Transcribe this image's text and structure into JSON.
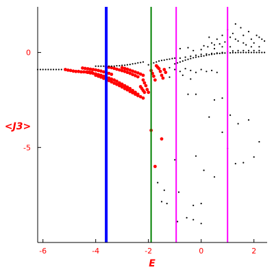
{
  "chart_data": {
    "type": "scatter",
    "title": "",
    "xlabel": "E",
    "ylabel": "<J3>",
    "xlim": [
      -6.2,
      2.5
    ],
    "ylim": [
      -10,
      2.4
    ],
    "grid": false,
    "label_color": "#ff0000",
    "axis_color": "#000000",
    "x_ticks": [
      {
        "value": -6,
        "label": "-6"
      },
      {
        "value": -4,
        "label": "-4"
      },
      {
        "value": -2,
        "label": "-2"
      },
      {
        "value": 0,
        "label": "0"
      },
      {
        "value": 2,
        "label": "2"
      }
    ],
    "y_ticks": [
      {
        "value": 0,
        "label": "0"
      },
      {
        "value": -5,
        "label": "-5"
      }
    ],
    "vertical_lines": [
      {
        "x": -3.6,
        "color": "#0000ff"
      },
      {
        "x": -1.9,
        "color": "#008000"
      },
      {
        "x": -0.95,
        "color": "#ff00ff"
      },
      {
        "x": 1.0,
        "color": "#ff00ff"
      }
    ],
    "series": [
      {
        "color": "#ff0000",
        "points": [
          [
            -5.15,
            -0.9
          ],
          [
            -5.05,
            -0.93
          ],
          [
            -4.95,
            -0.95
          ],
          [
            -4.85,
            -0.98
          ],
          [
            -4.75,
            -1.0
          ],
          [
            -4.65,
            -1.0
          ],
          [
            -4.55,
            -1.02
          ],
          [
            -4.45,
            -1.02
          ],
          [
            -4.35,
            -1.03
          ],
          [
            -4.25,
            -1.04
          ],
          [
            -4.15,
            -1.05
          ],
          [
            -4.5,
            -0.82
          ],
          [
            -4.4,
            -0.84
          ],
          [
            -4.3,
            -0.86
          ],
          [
            -4.2,
            -0.88
          ],
          [
            -4.1,
            -0.9
          ],
          [
            -4.0,
            -0.92
          ],
          [
            -3.9,
            -0.95
          ],
          [
            -3.8,
            -0.98
          ],
          [
            -3.7,
            -1.02
          ],
          [
            -3.6,
            -1.05
          ],
          [
            -3.5,
            -1.1
          ],
          [
            -3.4,
            -1.15
          ],
          [
            -4.3,
            -1.05
          ],
          [
            -4.2,
            -1.08
          ],
          [
            -4.1,
            -1.1
          ],
          [
            -4.0,
            -1.13
          ],
          [
            -3.9,
            -1.17
          ],
          [
            -3.8,
            -1.2
          ],
          [
            -3.7,
            -1.25
          ],
          [
            -3.6,
            -1.3
          ],
          [
            -3.5,
            -1.35
          ],
          [
            -3.4,
            -1.4
          ],
          [
            -3.3,
            -1.45
          ],
          [
            -3.2,
            -1.52
          ],
          [
            -3.1,
            -1.6
          ],
          [
            -3.0,
            -1.67
          ],
          [
            -2.9,
            -1.75
          ],
          [
            -2.8,
            -1.82
          ],
          [
            -2.7,
            -1.9
          ],
          [
            -2.6,
            -2.0
          ],
          [
            -2.5,
            -2.1
          ],
          [
            -2.4,
            -2.2
          ],
          [
            -4.0,
            -1.2
          ],
          [
            -3.9,
            -1.25
          ],
          [
            -3.8,
            -1.3
          ],
          [
            -3.7,
            -1.36
          ],
          [
            -3.6,
            -1.42
          ],
          [
            -3.5,
            -1.48
          ],
          [
            -3.4,
            -1.55
          ],
          [
            -3.3,
            -1.62
          ],
          [
            -3.2,
            -1.68
          ],
          [
            -3.1,
            -1.75
          ],
          [
            -3.0,
            -1.82
          ],
          [
            -2.9,
            -1.9
          ],
          [
            -2.8,
            -1.97
          ],
          [
            -2.7,
            -2.05
          ],
          [
            -2.6,
            -2.12
          ],
          [
            -2.5,
            -2.2
          ],
          [
            -2.4,
            -2.27
          ],
          [
            -2.3,
            -2.33
          ],
          [
            -2.2,
            -2.4
          ],
          [
            -3.6,
            -0.75
          ],
          [
            -3.5,
            -0.78
          ],
          [
            -3.4,
            -0.8
          ],
          [
            -3.3,
            -0.84
          ],
          [
            -3.2,
            -0.88
          ],
          [
            -3.1,
            -0.92
          ],
          [
            -3.0,
            -0.96
          ],
          [
            -2.9,
            -1.0
          ],
          [
            -2.8,
            -1.05
          ],
          [
            -2.7,
            -1.1
          ],
          [
            -2.6,
            -1.16
          ],
          [
            -2.5,
            -1.22
          ],
          [
            -2.4,
            -1.28
          ],
          [
            -3.0,
            -0.8
          ],
          [
            -2.9,
            -0.84
          ],
          [
            -2.8,
            -0.88
          ],
          [
            -2.7,
            -0.93
          ],
          [
            -2.6,
            -0.98
          ],
          [
            -2.5,
            -1.03
          ],
          [
            -2.4,
            -1.08
          ],
          [
            -2.3,
            -1.14
          ],
          [
            -2.2,
            -1.2
          ],
          [
            -2.2,
            -1.45
          ],
          [
            -2.15,
            -1.6
          ],
          [
            -2.1,
            -1.75
          ],
          [
            -2.05,
            -1.95
          ],
          [
            -2.0,
            -2.1
          ],
          [
            -2.3,
            -1.8
          ],
          [
            -2.25,
            -1.9
          ],
          [
            -2.2,
            -2.0
          ],
          [
            -2.15,
            -2.1
          ],
          [
            -1.9,
            -0.95
          ],
          [
            -1.85,
            -1.1
          ],
          [
            -1.8,
            -1.25
          ],
          [
            -1.75,
            -1.45
          ],
          [
            -1.6,
            -0.85
          ],
          [
            -1.55,
            -1.0
          ],
          [
            -1.5,
            -1.2
          ],
          [
            -1.45,
            -1.35
          ],
          [
            -1.7,
            -0.7
          ],
          [
            -1.65,
            -0.78
          ],
          [
            -1.4,
            -0.9
          ],
          [
            -1.35,
            -1.05
          ],
          [
            -1.9,
            -4.1
          ],
          [
            -1.75,
            -6.0
          ],
          [
            -1.5,
            -4.55
          ]
        ]
      },
      {
        "color": "#000000",
        "points": [
          [
            -6.2,
            -0.9
          ],
          [
            -6.1,
            -0.9
          ],
          [
            -6.0,
            -0.9
          ],
          [
            -5.9,
            -0.9
          ],
          [
            -5.8,
            -0.9
          ],
          [
            -5.7,
            -0.9
          ],
          [
            -5.6,
            -0.9
          ],
          [
            -5.5,
            -0.9
          ],
          [
            -5.4,
            -0.9
          ],
          [
            -5.3,
            -0.9
          ],
          [
            -4.0,
            -0.72
          ],
          [
            -3.9,
            -0.72
          ],
          [
            -3.8,
            -0.72
          ],
          [
            -3.7,
            -0.72
          ],
          [
            -3.6,
            -0.72
          ],
          [
            -3.5,
            -0.72
          ],
          [
            -3.4,
            -0.72
          ],
          [
            -3.3,
            -0.72
          ],
          [
            -3.2,
            -0.7
          ],
          [
            -3.1,
            -0.7
          ],
          [
            -3.0,
            -0.68
          ],
          [
            -2.9,
            -0.67
          ],
          [
            -2.8,
            -0.65
          ],
          [
            -2.7,
            -0.63
          ],
          [
            -2.6,
            -0.6
          ],
          [
            -2.5,
            -0.58
          ],
          [
            -2.4,
            -0.55
          ],
          [
            -2.3,
            -0.53
          ],
          [
            -2.2,
            -0.5
          ],
          [
            -2.0,
            -0.65
          ],
          [
            -1.9,
            -0.6
          ],
          [
            -1.8,
            -0.55
          ],
          [
            -1.7,
            -0.5
          ],
          [
            -1.6,
            -0.45
          ],
          [
            -1.5,
            -0.42
          ],
          [
            -1.4,
            -0.4
          ],
          [
            -1.3,
            -0.37
          ],
          [
            -1.2,
            -0.35
          ],
          [
            -1.1,
            -0.32
          ],
          [
            -1.0,
            -0.3
          ],
          [
            -1.0,
            -0.6
          ],
          [
            -0.9,
            -0.55
          ],
          [
            -0.8,
            -0.5
          ],
          [
            -0.7,
            -0.45
          ],
          [
            -0.6,
            -0.4
          ],
          [
            -0.5,
            -0.36
          ],
          [
            -0.4,
            -0.32
          ],
          [
            -0.3,
            -0.28
          ],
          [
            -0.2,
            -0.25
          ],
          [
            -0.1,
            -0.22
          ],
          [
            0.0,
            -0.2
          ],
          [
            0.1,
            -0.18
          ],
          [
            0.2,
            -0.15
          ],
          [
            0.3,
            -0.12
          ],
          [
            0.4,
            -0.1
          ],
          [
            0.5,
            -0.08
          ],
          [
            0.6,
            -0.06
          ],
          [
            0.7,
            -0.05
          ],
          [
            0.8,
            -0.04
          ],
          [
            0.9,
            -0.03
          ],
          [
            1.0,
            -0.02
          ],
          [
            1.1,
            -0.02
          ],
          [
            1.2,
            -0.01
          ],
          [
            1.3,
            -0.01
          ],
          [
            1.4,
            0.0
          ],
          [
            1.5,
            0.0
          ],
          [
            1.6,
            0.0
          ],
          [
            1.7,
            0.0
          ],
          [
            1.8,
            0.0
          ],
          [
            1.9,
            0.0
          ],
          [
            2.0,
            0.0
          ],
          [
            2.1,
            0.0
          ],
          [
            2.2,
            0.0
          ],
          [
            2.3,
            0.0
          ],
          [
            2.4,
            0.0
          ],
          [
            -0.8,
            -0.3
          ],
          [
            -0.6,
            -0.25
          ],
          [
            -0.4,
            -0.2
          ],
          [
            -0.2,
            -0.15
          ],
          [
            0.0,
            -0.1
          ],
          [
            0.2,
            -0.08
          ],
          [
            0.4,
            -0.05
          ],
          [
            0.6,
            -0.03
          ],
          [
            0.8,
            0.0
          ],
          [
            1.0,
            0.05
          ],
          [
            1.2,
            0.08
          ],
          [
            1.4,
            0.1
          ],
          [
            1.6,
            0.1
          ],
          [
            1.8,
            0.1
          ],
          [
            2.0,
            0.1
          ],
          [
            2.2,
            0.1
          ],
          [
            -0.8,
            0.2
          ],
          [
            -0.5,
            0.25
          ],
          [
            -0.3,
            0.1
          ],
          [
            0.0,
            0.15
          ],
          [
            0.1,
            0.35
          ],
          [
            0.25,
            0.3
          ],
          [
            0.4,
            0.5
          ],
          [
            0.5,
            0.2
          ],
          [
            0.6,
            0.7
          ],
          [
            0.7,
            0.45
          ],
          [
            0.8,
            0.9
          ],
          [
            0.9,
            0.55
          ],
          [
            1.0,
            1.2
          ],
          [
            1.1,
            0.8
          ],
          [
            1.2,
            1.0
          ],
          [
            1.3,
            1.5
          ],
          [
            1.4,
            0.6
          ],
          [
            1.5,
            1.3
          ],
          [
            1.6,
            0.9
          ],
          [
            1.7,
            0.4
          ],
          [
            1.8,
            1.1
          ],
          [
            1.9,
            0.7
          ],
          [
            2.0,
            0.5
          ],
          [
            2.1,
            0.9
          ],
          [
            2.2,
            0.3
          ],
          [
            2.3,
            0.7
          ],
          [
            2.4,
            0.6
          ],
          [
            0.3,
            0.8
          ],
          [
            0.5,
            0.4
          ],
          [
            0.8,
            0.3
          ],
          [
            1.1,
            0.3
          ],
          [
            1.3,
            0.7
          ],
          [
            1.6,
            0.5
          ],
          [
            1.9,
            0.3
          ],
          [
            2.2,
            0.8
          ],
          [
            -1.2,
            -0.8
          ],
          [
            -1.0,
            -0.9
          ],
          [
            -0.8,
            -1.0
          ],
          [
            -0.6,
            -0.85
          ],
          [
            -0.4,
            -0.95
          ],
          [
            -0.2,
            -1.05
          ],
          [
            0.0,
            -0.9
          ],
          [
            0.2,
            -1.0
          ],
          [
            0.4,
            -0.95
          ],
          [
            0.6,
            -1.05
          ],
          [
            -1.2,
            -1.3
          ],
          [
            -0.7,
            -1.2
          ],
          [
            -0.4,
            -1.4
          ],
          [
            -0.5,
            -2.2
          ],
          [
            -0.2,
            -2.2
          ],
          [
            0.3,
            -3.4
          ],
          [
            0.5,
            -2.5
          ],
          [
            0.8,
            -2.4
          ],
          [
            1.1,
            -3.3
          ],
          [
            1.4,
            -3.75
          ],
          [
            1.8,
            -3.55
          ],
          [
            2.2,
            -4.7
          ],
          [
            0.8,
            -4.2
          ],
          [
            1.0,
            -5.05
          ],
          [
            1.3,
            -5.85
          ],
          [
            1.6,
            -5.8
          ],
          [
            2.0,
            -5.5
          ],
          [
            -1.0,
            -5.65
          ],
          [
            -0.2,
            -5.45
          ],
          [
            0.1,
            -6.2
          ],
          [
            0.5,
            -6.55
          ],
          [
            -1.65,
            -6.85
          ],
          [
            -1.4,
            -7.25
          ],
          [
            -0.85,
            -7.35
          ],
          [
            -0.55,
            -8.7
          ],
          [
            -1.5,
            -7.85
          ],
          [
            -1.3,
            -7.95
          ],
          [
            -0.3,
            -8.05
          ],
          [
            0.0,
            -7.95
          ],
          [
            -0.9,
            -8.9
          ],
          [
            -0.3,
            -8.8
          ],
          [
            0.0,
            -9.0
          ]
        ]
      }
    ]
  }
}
